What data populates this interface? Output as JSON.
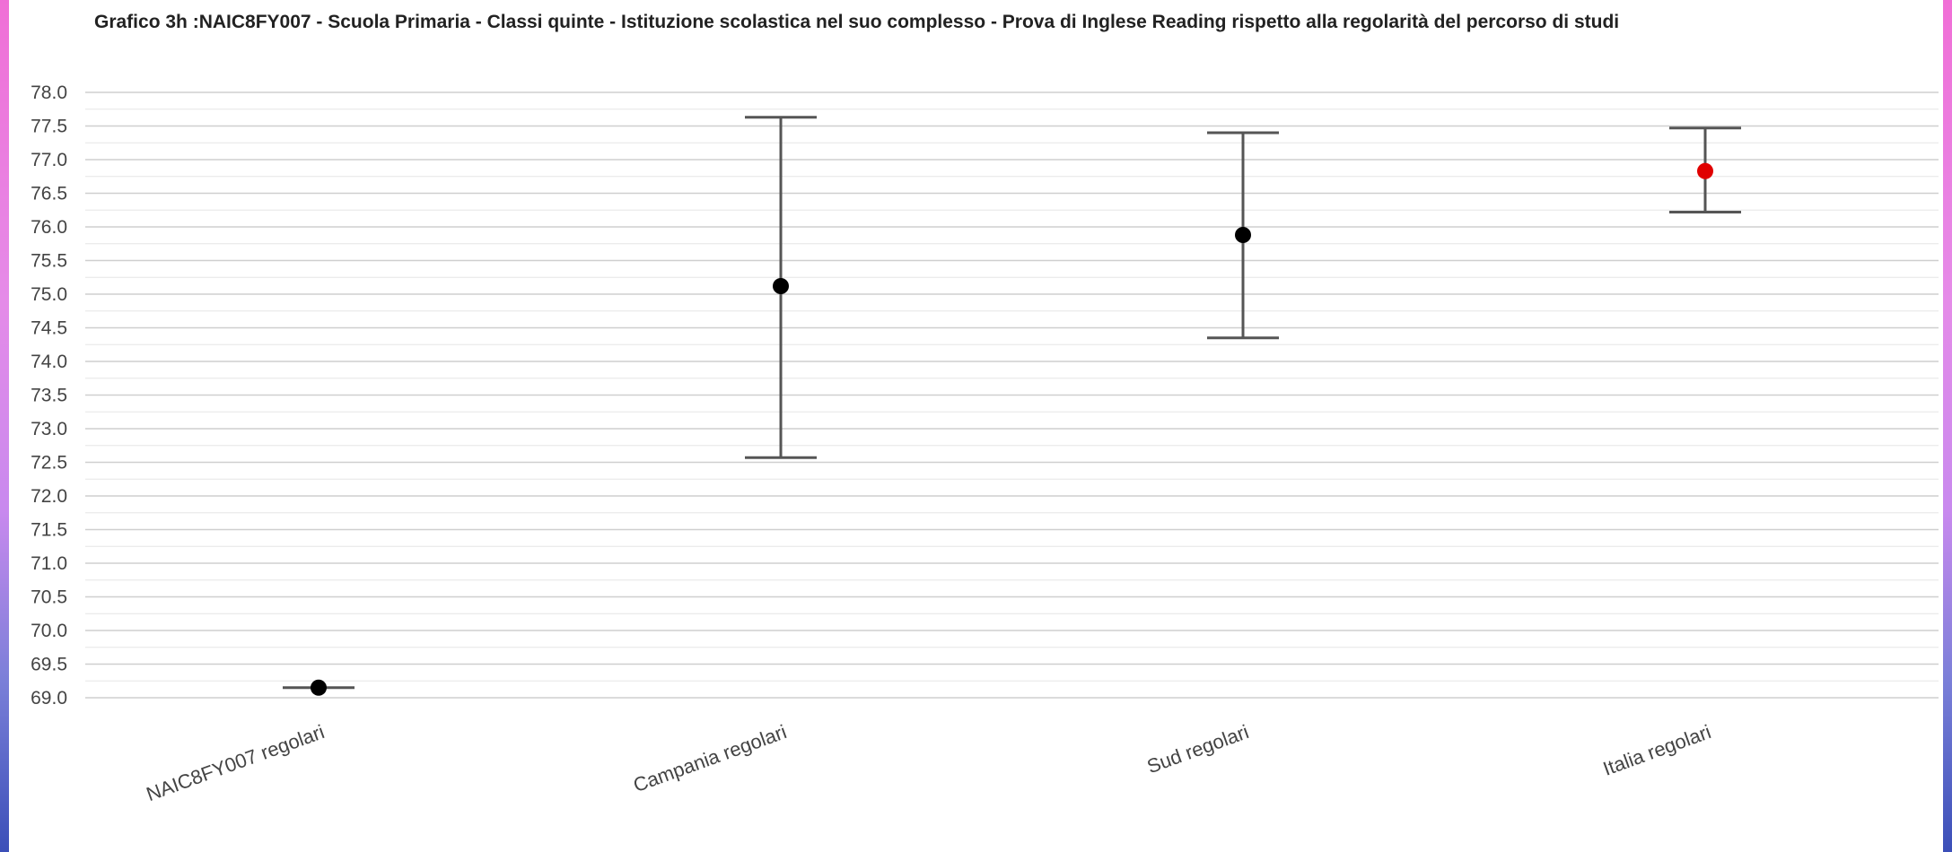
{
  "chart_data": {
    "type": "scatter",
    "title": "Grafico 3h :NAIC8FY007 - Scuola Primaria - Classi quinte - Istituzione scolastica nel suo complesso - Prova di Inglese Reading rispetto alla regolarità del percorso di studi",
    "xlabel": "",
    "ylabel": "",
    "ylim": [
      69.0,
      78.0
    ],
    "y_tick_step": 0.5,
    "y_tick_decimals": 1,
    "grid": true,
    "legend": "none",
    "categories": [
      "NAIC8FY007 regolari",
      "Campania regolari",
      "Sud regolari",
      "Italia regolari"
    ],
    "values": [
      69.15,
      75.12,
      75.88,
      76.83
    ],
    "lower": [
      69.15,
      72.57,
      74.35,
      76.22
    ],
    "upper": [
      69.15,
      77.63,
      77.4,
      77.47
    ],
    "point_colors": [
      "#000000",
      "#000000",
      "#000000",
      "#e00000"
    ]
  }
}
